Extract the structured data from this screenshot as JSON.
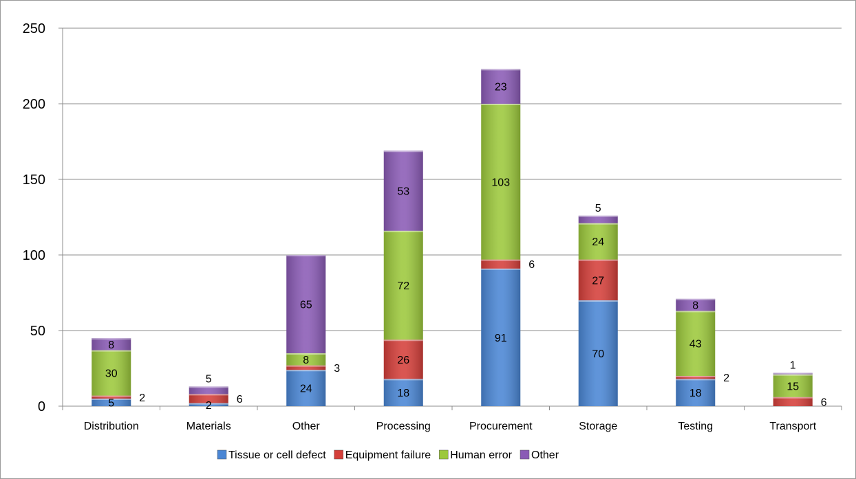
{
  "chart_data": {
    "type": "bar",
    "stacked": true,
    "categories": [
      "Distribution",
      "Materials",
      "Other",
      "Processing",
      "Procurement",
      "Storage",
      "Testing",
      "Transport"
    ],
    "series": [
      {
        "name": "Tissue or cell defect",
        "color": "#4a86d4",
        "values": [
          5,
          2,
          24,
          18,
          91,
          70,
          18,
          0
        ]
      },
      {
        "name": "Equipment failure",
        "color": "#d43f3a",
        "values": [
          2,
          6,
          3,
          26,
          6,
          27,
          2,
          6
        ]
      },
      {
        "name": "Human error",
        "color": "#9cc83c",
        "values": [
          30,
          0,
          8,
          72,
          103,
          24,
          43,
          15
        ]
      },
      {
        "name": "Other",
        "color": "#8a5bb5",
        "values": [
          8,
          5,
          65,
          53,
          23,
          5,
          8,
          1
        ]
      }
    ],
    "ylim": [
      0,
      250
    ],
    "yticks": [
      0,
      50,
      100,
      150,
      200,
      250
    ],
    "grid": true,
    "legend": "bottom",
    "title": "",
    "xlabel": "",
    "ylabel": ""
  }
}
